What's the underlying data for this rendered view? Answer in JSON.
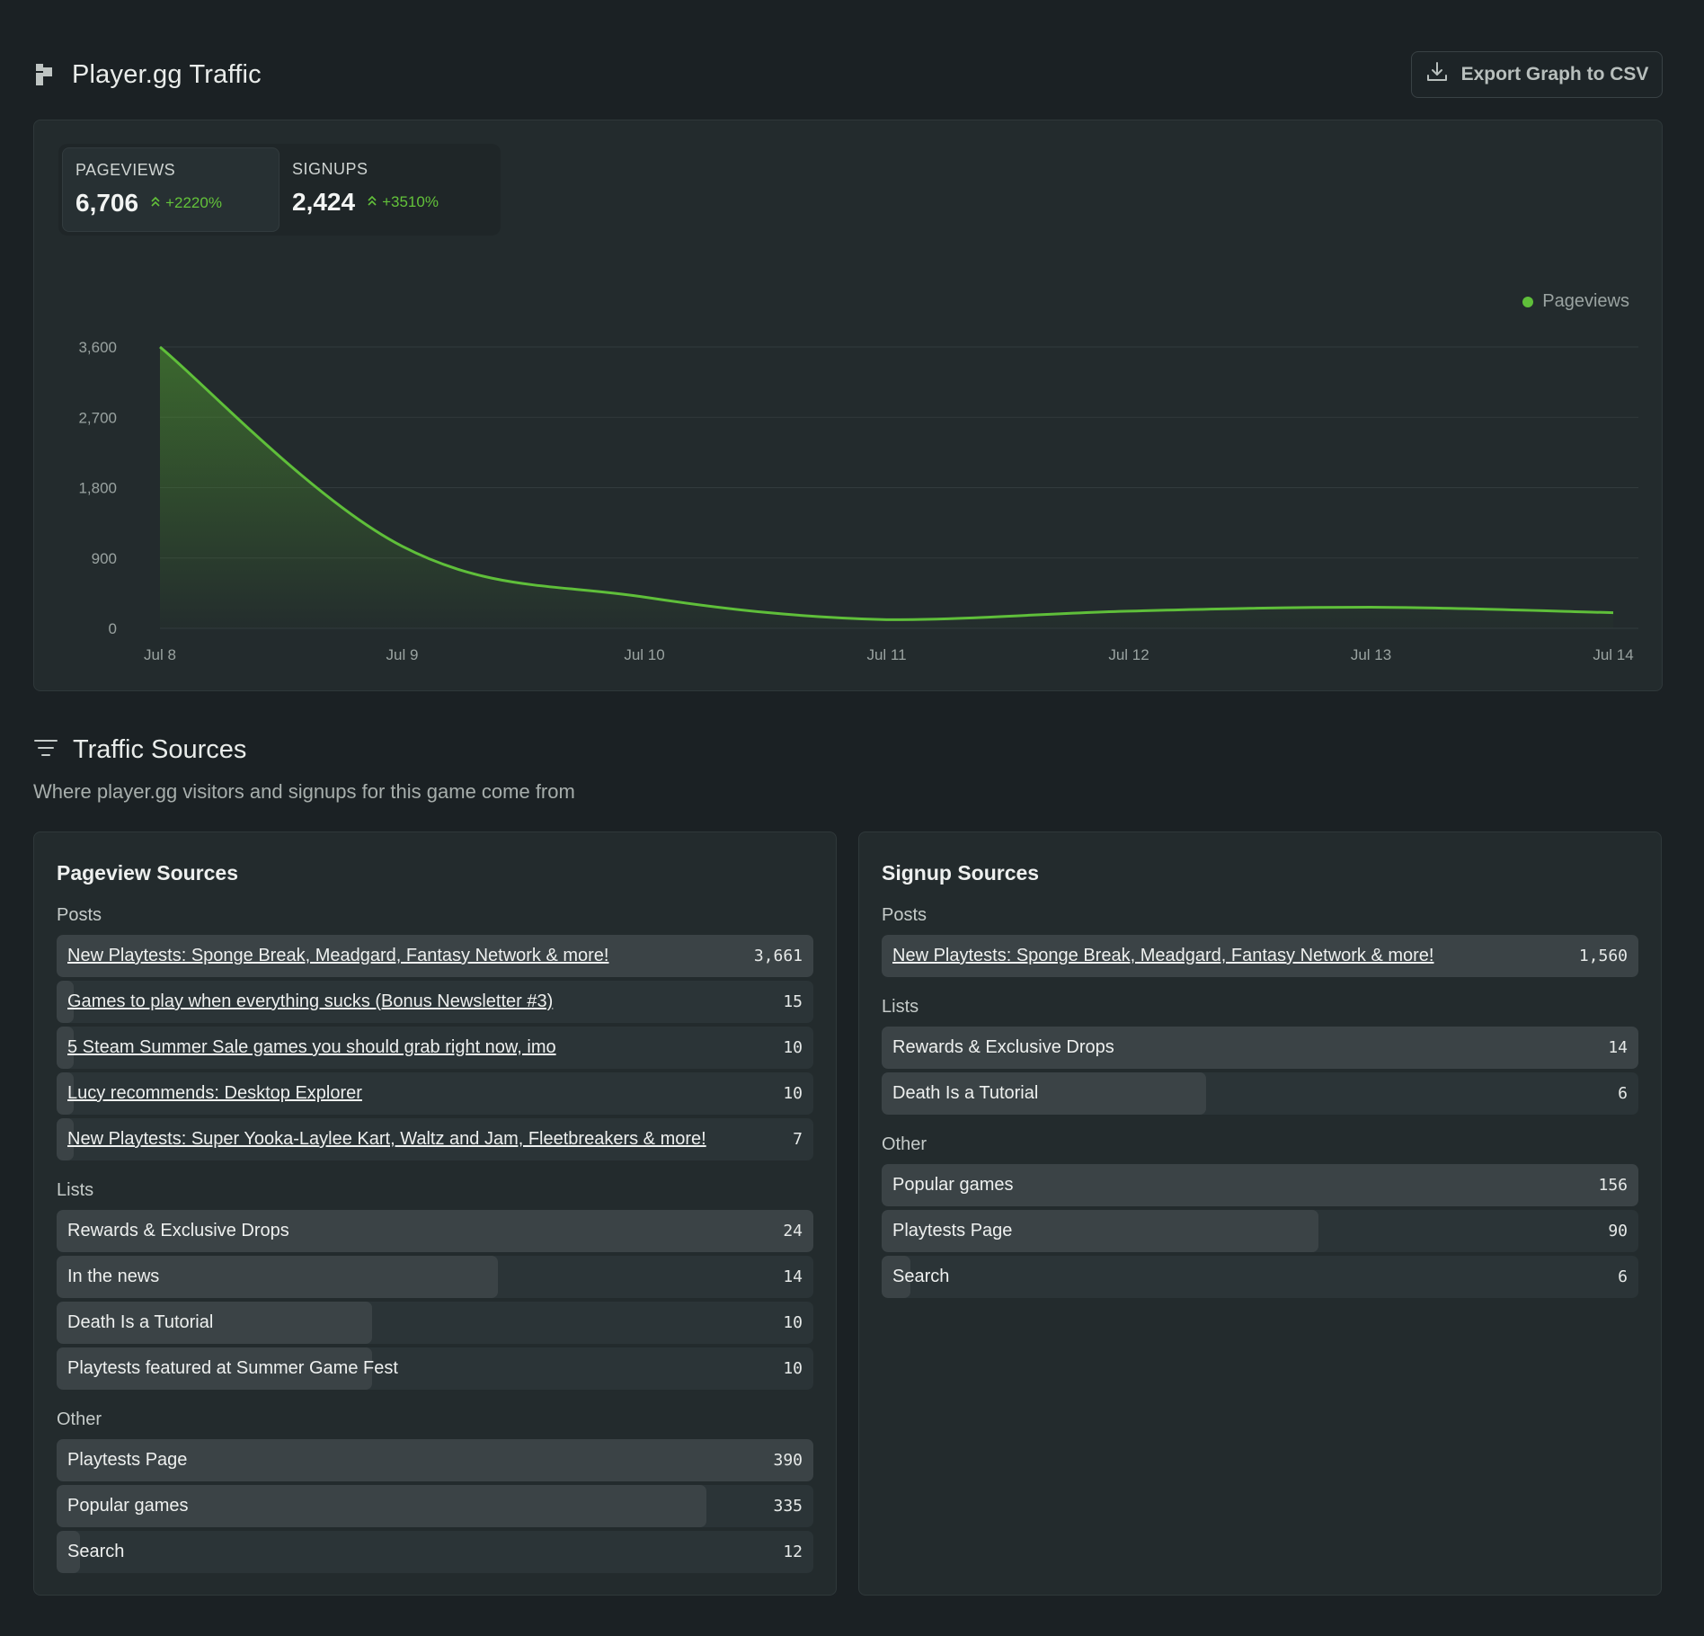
{
  "header": {
    "title": "Player.gg Traffic",
    "export_label": "Export Graph to CSV",
    "logo_icon": "player-gg-logo-icon",
    "export_icon": "download-icon"
  },
  "stats": [
    {
      "label": "PAGEVIEWS",
      "value": "6,706",
      "change": "+2220%",
      "active": true
    },
    {
      "label": "SIGNUPS",
      "value": "2,424",
      "change": "+3510%",
      "active": false
    }
  ],
  "colors": {
    "accent": "#5fbf3a",
    "background": "#1b2124",
    "card": "#232b2d"
  },
  "chart_data": {
    "type": "area",
    "x": [
      "Jul 8",
      "Jul 9",
      "Jul 10",
      "Jul 11",
      "Jul 12",
      "Jul 13",
      "Jul 14"
    ],
    "series": [
      {
        "name": "Pageviews",
        "values": [
          3600,
          1050,
          400,
          110,
          220,
          270,
          200
        ]
      }
    ],
    "yticks": [
      "3,600",
      "2,700",
      "1,800",
      "900",
      "0"
    ],
    "ylim": [
      0,
      3600
    ],
    "grid": true,
    "legend": "top-right"
  },
  "traffic_sources": {
    "title": "Traffic Sources",
    "subtitle": "Where player.gg visitors and signups for this game come from",
    "filter_icon": "filter-icon"
  },
  "pageview_sources": {
    "title": "Pageview Sources",
    "groups": [
      {
        "label": "Posts",
        "items": [
          {
            "label": "New Playtests: Sponge Break, Meadgard, Fantasy Network & more!",
            "count": "3,661",
            "value": 3661,
            "link": true
          },
          {
            "label": "Games to play when everything sucks (Bonus Newsletter #3)",
            "count": "15",
            "value": 15,
            "link": true
          },
          {
            "label": "5 Steam Summer Sale games you should grab right now, imo",
            "count": "10",
            "value": 10,
            "link": true
          },
          {
            "label": "Lucy recommends: Desktop Explorer",
            "count": "10",
            "value": 10,
            "link": true
          },
          {
            "label": "New Playtests: Super Yooka-Laylee Kart, Waltz and Jam, Fleetbreakers & more!",
            "count": "7",
            "value": 7,
            "link": true
          }
        ]
      },
      {
        "label": "Lists",
        "items": [
          {
            "label": "Rewards & Exclusive Drops",
            "count": "24",
            "value": 24,
            "link": false
          },
          {
            "label": "In the news",
            "count": "14",
            "value": 14,
            "link": false
          },
          {
            "label": "Death Is a Tutorial",
            "count": "10",
            "value": 10,
            "link": false
          },
          {
            "label": "Playtests featured at Summer Game Fest",
            "count": "10",
            "value": 10,
            "link": false
          }
        ]
      },
      {
        "label": "Other",
        "items": [
          {
            "label": "Playtests Page",
            "count": "390",
            "value": 390,
            "link": false
          },
          {
            "label": "Popular games",
            "count": "335",
            "value": 335,
            "link": false
          },
          {
            "label": "Search",
            "count": "12",
            "value": 12,
            "link": false
          }
        ]
      }
    ]
  },
  "signup_sources": {
    "title": "Signup Sources",
    "groups": [
      {
        "label": "Posts",
        "items": [
          {
            "label": "New Playtests: Sponge Break, Meadgard, Fantasy Network & more!",
            "count": "1,560",
            "value": 1560,
            "link": true
          }
        ]
      },
      {
        "label": "Lists",
        "items": [
          {
            "label": "Rewards & Exclusive Drops",
            "count": "14",
            "value": 14,
            "link": false
          },
          {
            "label": "Death Is a Tutorial",
            "count": "6",
            "value": 6,
            "link": false
          }
        ]
      },
      {
        "label": "Other",
        "items": [
          {
            "label": "Popular games",
            "count": "156",
            "value": 156,
            "link": false
          },
          {
            "label": "Playtests Page",
            "count": "90",
            "value": 90,
            "link": false
          },
          {
            "label": "Search",
            "count": "6",
            "value": 6,
            "link": false
          }
        ]
      }
    ]
  }
}
